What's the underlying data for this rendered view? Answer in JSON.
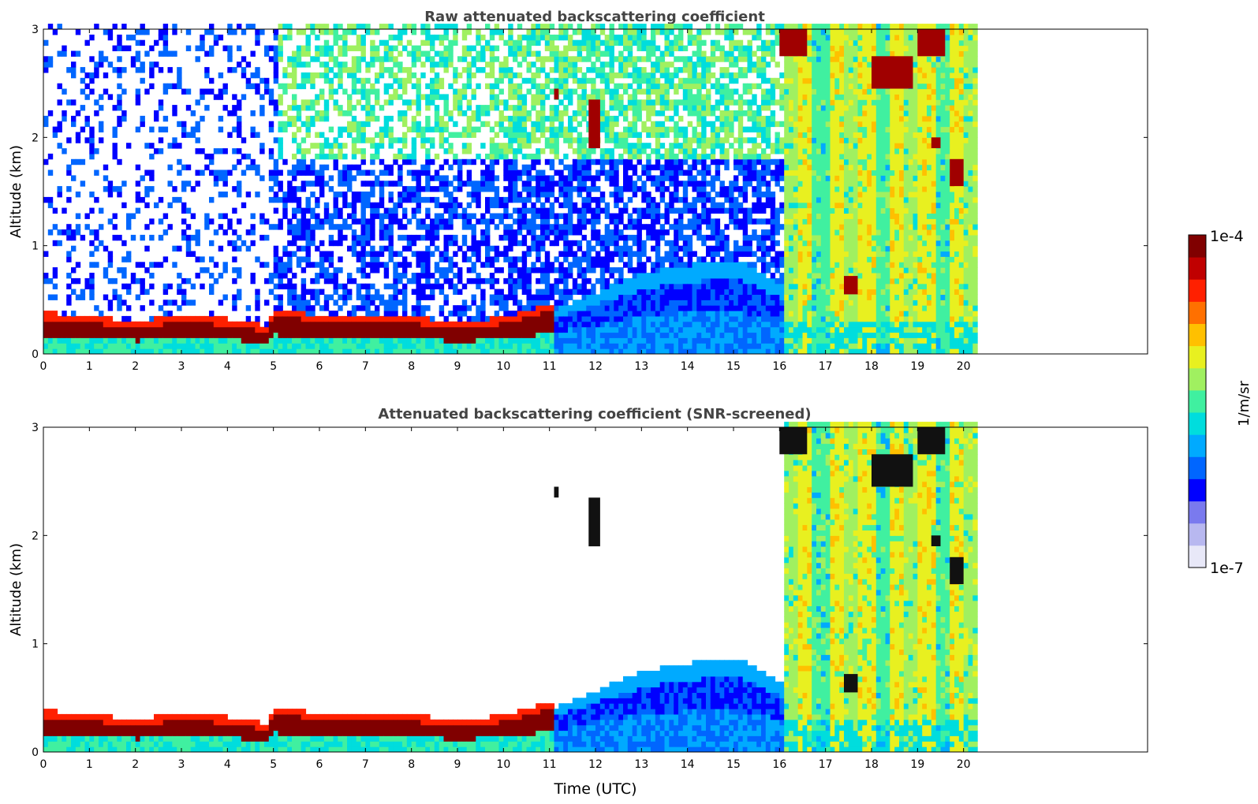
{
  "chart_data": [
    {
      "type": "heatmap",
      "title": "Raw attenuated backscattering coefficient",
      "xlabel": "",
      "ylabel": "Altitude (km)",
      "xlim": [
        0,
        24
      ],
      "ylim": [
        0,
        3
      ],
      "xticks": [
        "0",
        "1",
        "2",
        "3",
        "4",
        "5",
        "6",
        "7",
        "8",
        "9",
        "10",
        "11",
        "12",
        "13",
        "14",
        "15",
        "16",
        "17",
        "18",
        "19",
        "20"
      ],
      "yticks": [
        "0",
        "1",
        "2",
        "3"
      ],
      "data_end_hour": 20.3,
      "screened": false,
      "features": {
        "boundary_layer_top_km": [
          {
            "t": 0,
            "h": 0.3
          },
          {
            "t": 1,
            "h": 0.26
          },
          {
            "t": 2,
            "h": 0.22
          },
          {
            "t": 3,
            "h": 0.27
          },
          {
            "t": 4,
            "h": 0.24
          },
          {
            "t": 4.8,
            "h": 0.18
          },
          {
            "t": 5,
            "h": 0.34
          },
          {
            "t": 6,
            "h": 0.26
          },
          {
            "t": 7,
            "h": 0.28
          },
          {
            "t": 8,
            "h": 0.26
          },
          {
            "t": 9,
            "h": 0.2
          },
          {
            "t": 10,
            "h": 0.26
          },
          {
            "t": 11,
            "h": 0.38
          },
          {
            "t": 12,
            "h": 0.55
          },
          {
            "t": 13,
            "h": 0.72
          },
          {
            "t": 14,
            "h": 0.8
          },
          {
            "t": 15,
            "h": 0.85
          },
          {
            "t": 16,
            "h": 0.6
          }
        ],
        "cloud_segments": [
          {
            "t0": 11.1,
            "t1": 11.2,
            "h0": 2.35,
            "h1": 2.45
          },
          {
            "t0": 11.85,
            "t1": 12.1,
            "h0": 1.9,
            "h1": 2.35
          },
          {
            "t0": 16.0,
            "t1": 16.6,
            "h0": 2.75,
            "h1": 3.0
          },
          {
            "t0": 17.4,
            "t1": 17.7,
            "h0": 0.55,
            "h1": 0.72
          },
          {
            "t0": 18.0,
            "t1": 18.9,
            "h0": 2.45,
            "h1": 2.75
          },
          {
            "t0": 19.0,
            "t1": 19.6,
            "h0": 2.75,
            "h1": 3.0
          },
          {
            "t0": 19.3,
            "t1": 19.5,
            "h0": 1.9,
            "h1": 2.0
          },
          {
            "t0": 19.7,
            "t1": 20.0,
            "h0": 1.55,
            "h1": 1.8
          }
        ]
      }
    },
    {
      "type": "heatmap",
      "title": "Attenuated backscattering coefficient (SNR-screened)",
      "xlabel": "Time (UTC)",
      "ylabel": "Altitude (km)",
      "xlim": [
        0,
        24
      ],
      "ylim": [
        0,
        3
      ],
      "xticks": [
        "0",
        "1",
        "2",
        "3",
        "4",
        "5",
        "6",
        "7",
        "8",
        "9",
        "10",
        "11",
        "12",
        "13",
        "14",
        "15",
        "16",
        "17",
        "18",
        "19",
        "20"
      ],
      "yticks": [
        "0",
        "1",
        "2",
        "3"
      ],
      "data_end_hour": 20.3,
      "screened": true
    }
  ],
  "colorbar": {
    "label": "1/m/sr",
    "min_label": "1e-7",
    "max_label": "1e-4",
    "scale": "log",
    "colors": [
      "#e8e8f8",
      "#b8b8f0",
      "#7a7aee",
      "#0000ff",
      "#0066ff",
      "#00aaff",
      "#00dddd",
      "#40f0a0",
      "#a0f060",
      "#e8f020",
      "#ffc000",
      "#ff7000",
      "#ff2000",
      "#c00000",
      "#800000"
    ]
  }
}
